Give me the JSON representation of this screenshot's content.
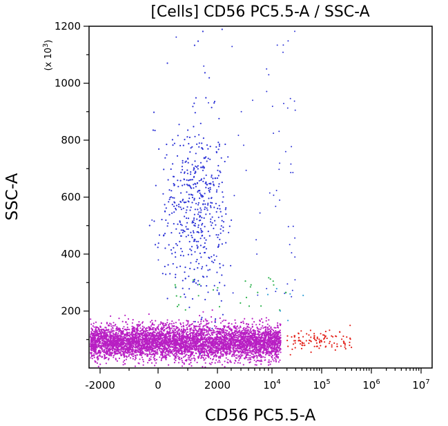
{
  "chart_data": {
    "type": "scatter",
    "title": "[Cells] CD56 PC5.5-A / SSC-A",
    "xlabel": "CD56 PC5.5-A",
    "ylabel": "SSC-A",
    "y_multiplier_label": "(x 10",
    "y_multiplier_exp": "3",
    "y_multiplier_close": ")",
    "x_scale": "biexponential",
    "x_ticks": [
      {
        "value": -2000,
        "label": "-2000"
      },
      {
        "value": 0,
        "label": "0"
      },
      {
        "value": 2000,
        "label": "2000"
      },
      {
        "value": 10000,
        "label": "10",
        "exp": "4"
      },
      {
        "value": 100000,
        "label": "10",
        "exp": "5"
      },
      {
        "value": 1000000,
        "label": "10",
        "exp": "6"
      },
      {
        "value": 10000000,
        "label": "10",
        "exp": "7"
      }
    ],
    "ylim": [
      0,
      1200
    ],
    "y_ticks": [
      {
        "value": 200,
        "label": "200"
      },
      {
        "value": 400,
        "label": "400"
      },
      {
        "value": 600,
        "label": "600"
      },
      {
        "value": 800,
        "label": "800"
      },
      {
        "value": 1000,
        "label": "1000"
      },
      {
        "value": 1200,
        "label": "1200"
      }
    ],
    "grid": false,
    "populations": [
      {
        "color": "#b81fc3",
        "x_range": [
          -3000,
          15000
        ],
        "y_center": 90,
        "y_spread": 30,
        "count": 5200
      },
      {
        "color": "#2b32d6",
        "x_center": 1300,
        "x_spread": 600,
        "y_center": 560,
        "y_spread": 150,
        "count": 520
      },
      {
        "color": "#e3231c",
        "x_range": [
          20000,
          400000
        ],
        "y_center": 95,
        "y_spread": 20,
        "count": 110
      },
      {
        "color": "#2bb24c",
        "x_range": [
          500,
          20000
        ],
        "y_range": [
          200,
          320
        ],
        "count": 28
      },
      {
        "color": "#37a3d8",
        "x_range": [
          8000,
          60000
        ],
        "y_range": [
          150,
          280
        ],
        "count": 6
      }
    ]
  }
}
